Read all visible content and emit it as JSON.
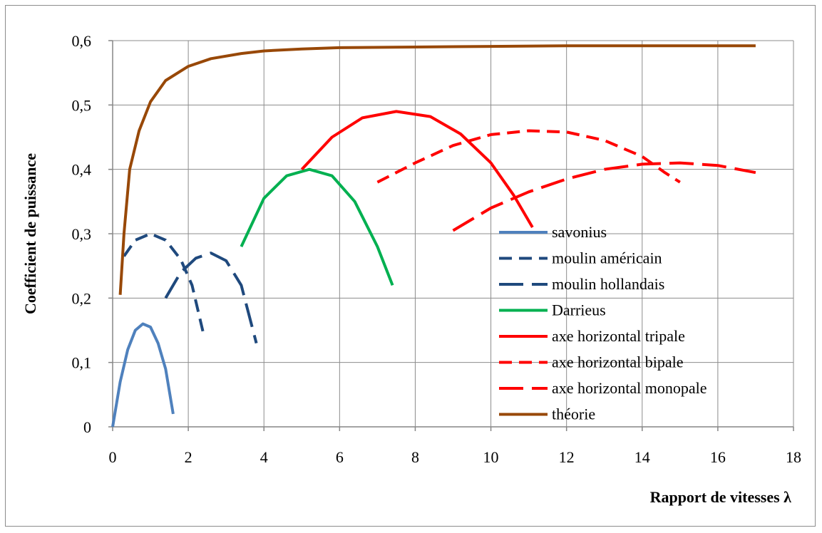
{
  "chart_data": {
    "type": "line",
    "title": "",
    "xlabel": "Rapport de vitesses λ",
    "ylabel": "Coefficient de puissance",
    "xlim": [
      0,
      18
    ],
    "ylim": [
      0,
      0.6
    ],
    "x_ticks": [
      "0",
      "2",
      "4",
      "6",
      "8",
      "10",
      "12",
      "14",
      "16",
      "18"
    ],
    "y_ticks": [
      "0",
      "0,1",
      "0,2",
      "0,3",
      "0,4",
      "0,5",
      "0,6"
    ],
    "grid": "vertical and horizontal major gridlines",
    "legend_position": "inside-right",
    "series": [
      {
        "name": "savonius",
        "color": "#4f81bd",
        "style": "solid",
        "points": [
          [
            0,
            0
          ],
          [
            0.2,
            0.07
          ],
          [
            0.4,
            0.12
          ],
          [
            0.6,
            0.15
          ],
          [
            0.8,
            0.16
          ],
          [
            1.0,
            0.155
          ],
          [
            1.2,
            0.13
          ],
          [
            1.4,
            0.09
          ],
          [
            1.6,
            0.02
          ]
        ]
      },
      {
        "name": "moulin américain",
        "color": "#1f497d",
        "style": "dash",
        "points": [
          [
            0.3,
            0.265
          ],
          [
            0.6,
            0.29
          ],
          [
            1.0,
            0.3
          ],
          [
            1.4,
            0.29
          ],
          [
            1.8,
            0.26
          ],
          [
            2.1,
            0.22
          ],
          [
            2.4,
            0.145
          ]
        ]
      },
      {
        "name": "moulin hollandais",
        "color": "#1f497d",
        "style": "longdash",
        "points": [
          [
            1.4,
            0.2
          ],
          [
            1.8,
            0.24
          ],
          [
            2.2,
            0.262
          ],
          [
            2.6,
            0.27
          ],
          [
            3.0,
            0.258
          ],
          [
            3.4,
            0.22
          ],
          [
            3.8,
            0.13
          ]
        ]
      },
      {
        "name": "Darrieus",
        "color": "#00b050",
        "style": "solid",
        "points": [
          [
            3.4,
            0.28
          ],
          [
            4.0,
            0.355
          ],
          [
            4.6,
            0.39
          ],
          [
            5.2,
            0.4
          ],
          [
            5.8,
            0.39
          ],
          [
            6.4,
            0.35
          ],
          [
            7.0,
            0.28
          ],
          [
            7.4,
            0.22
          ]
        ]
      },
      {
        "name": "axe horizontal tripale",
        "color": "#ff0000",
        "style": "solid",
        "points": [
          [
            5.0,
            0.4
          ],
          [
            5.8,
            0.45
          ],
          [
            6.6,
            0.48
          ],
          [
            7.5,
            0.49
          ],
          [
            8.4,
            0.482
          ],
          [
            9.2,
            0.455
          ],
          [
            10.0,
            0.41
          ],
          [
            10.6,
            0.36
          ],
          [
            11.1,
            0.31
          ]
        ]
      },
      {
        "name": "axe horizontal bipale",
        "color": "#ff0000",
        "style": "dash",
        "points": [
          [
            7.0,
            0.38
          ],
          [
            8.0,
            0.41
          ],
          [
            9.0,
            0.437
          ],
          [
            10.0,
            0.454
          ],
          [
            11.0,
            0.46
          ],
          [
            12.0,
            0.458
          ],
          [
            13.0,
            0.445
          ],
          [
            14.0,
            0.42
          ],
          [
            14.6,
            0.395
          ],
          [
            15.0,
            0.38
          ]
        ]
      },
      {
        "name": "axe horizontal monopale",
        "color": "#ff0000",
        "style": "longdash",
        "points": [
          [
            9.0,
            0.305
          ],
          [
            10.0,
            0.34
          ],
          [
            11.0,
            0.365
          ],
          [
            12.0,
            0.385
          ],
          [
            13.0,
            0.4
          ],
          [
            14.0,
            0.408
          ],
          [
            15.0,
            0.41
          ],
          [
            16.0,
            0.406
          ],
          [
            17.0,
            0.395
          ]
        ]
      },
      {
        "name": "théorie",
        "color": "#984807",
        "style": "solid",
        "points": [
          [
            0.2,
            0.205
          ],
          [
            0.3,
            0.3
          ],
          [
            0.45,
            0.4
          ],
          [
            0.7,
            0.46
          ],
          [
            1.0,
            0.505
          ],
          [
            1.4,
            0.538
          ],
          [
            2.0,
            0.56
          ],
          [
            2.6,
            0.572
          ],
          [
            3.4,
            0.58
          ],
          [
            4.0,
            0.584
          ],
          [
            5.0,
            0.587
          ],
          [
            6.0,
            0.589
          ],
          [
            8.0,
            0.59
          ],
          [
            10.0,
            0.591
          ],
          [
            12.0,
            0.592
          ],
          [
            17.0,
            0.592
          ]
        ]
      }
    ]
  }
}
